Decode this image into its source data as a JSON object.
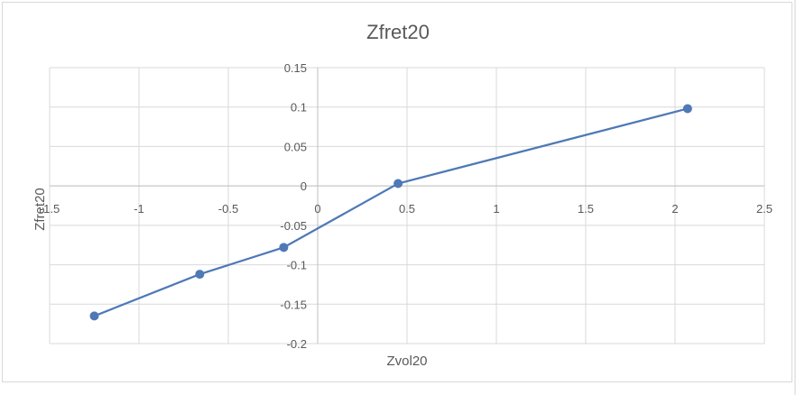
{
  "chart_data": {
    "type": "scatter",
    "title": "Zfret20",
    "xlabel": "Zvol20",
    "ylabel": "Zfret20",
    "xlim": [
      -1.5,
      2.5
    ],
    "ylim": [
      -0.2,
      0.15
    ],
    "x_ticks": [
      -1.5,
      -1,
      -0.5,
      0,
      0.5,
      1,
      1.5,
      2,
      2.5
    ],
    "y_ticks": [
      -0.2,
      -0.15,
      -0.1,
      -0.05,
      0,
      0.05,
      0.1,
      0.15
    ],
    "x_tick_labels": [
      "-1.5",
      "-1",
      "-0.5",
      "0",
      "0.5",
      "1",
      "1.5",
      "2",
      "2.5"
    ],
    "y_tick_labels": [
      "-0.2",
      "-0.15",
      "-0.1",
      "-0.05",
      "0",
      "0.05",
      "0.1",
      "0.15"
    ],
    "grid": true,
    "lines_connected": true,
    "series": [
      {
        "color": "#4e79b6",
        "x": [
          -1.25,
          -0.66,
          -0.19,
          0.45,
          2.07
        ],
        "y": [
          -0.165,
          -0.112,
          -0.078,
          0.003,
          0.098
        ]
      }
    ]
  }
}
